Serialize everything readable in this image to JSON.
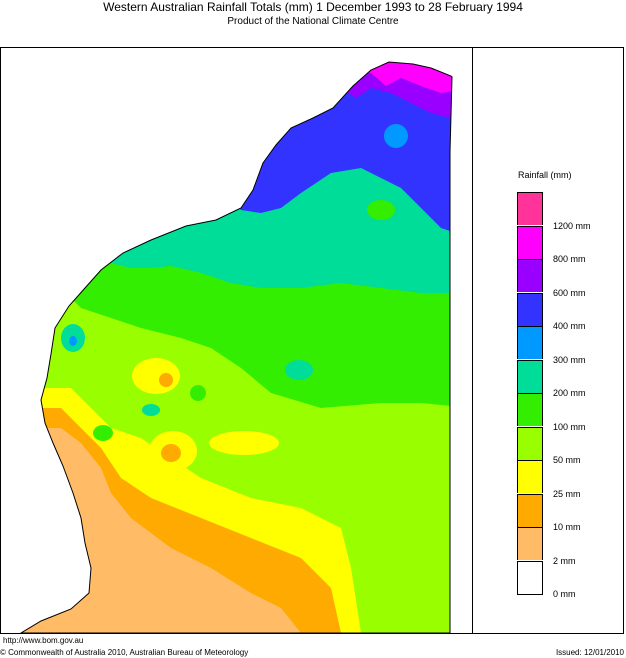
{
  "header": {
    "title": "Western Australian Rainfall Totals (mm) 1 December 1993 to 28 February 1994",
    "subtitle": "Product of the National Climate Centre"
  },
  "legend": {
    "title": "Rainfall (mm)",
    "bands": [
      {
        "color": "#ff3399"
      },
      {
        "color": "#ff00ff"
      },
      {
        "color": "#9900ff"
      },
      {
        "color": "#3333ff"
      },
      {
        "color": "#0099ff"
      },
      {
        "color": "#00dd99"
      },
      {
        "color": "#33ee00"
      },
      {
        "color": "#99ff00"
      },
      {
        "color": "#ffff00"
      },
      {
        "color": "#ffaa00"
      },
      {
        "color": "#ffbb66"
      },
      {
        "color": "#ffffff"
      }
    ],
    "labels": [
      "1200 mm",
      "800 mm",
      "600 mm",
      "400 mm",
      "300 mm",
      "200 mm",
      "100 mm",
      "50 mm",
      "25 mm",
      "10 mm",
      "2 mm",
      "0 mm"
    ]
  },
  "footer": {
    "url": "http://www.bom.gov.au",
    "copyright": "© Commonwealth of Australia 2010, Australian Bureau of Meteorology",
    "issued": "Issued: 12/01/2010"
  }
}
